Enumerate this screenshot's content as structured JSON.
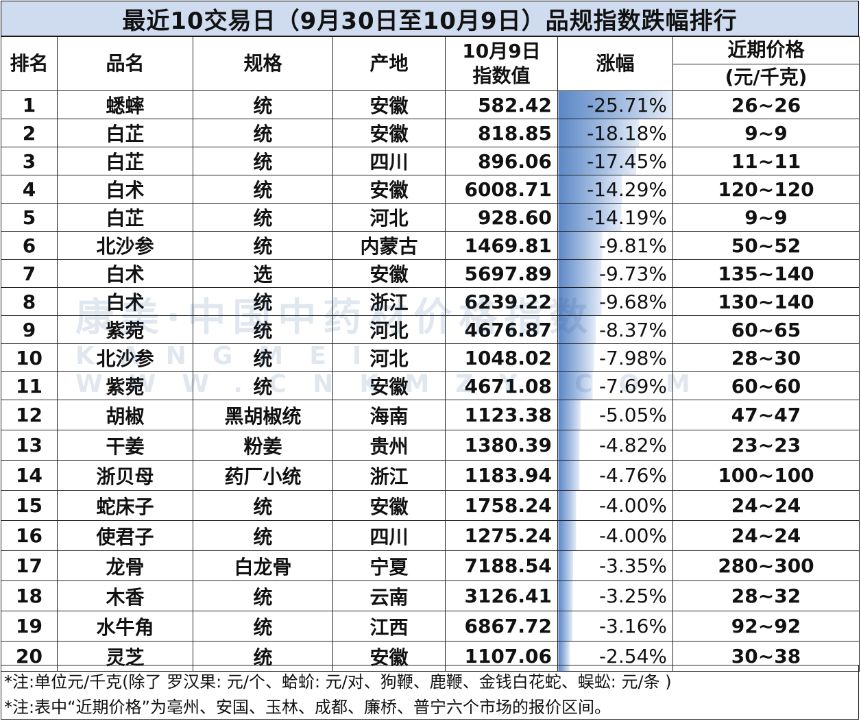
{
  "title": "最近10交易日（9月30日至10月9日）品规指数跌幅排行",
  "columns": [
    "排名",
    "品名",
    "规格",
    "产地",
    [
      "10月9日",
      "指数值"
    ],
    "涨幅",
    [
      "近期价格",
      "(元/千克)"
    ]
  ],
  "colors": {
    "title_bg": "#cfdcef",
    "bar_dark": "#5b87c5",
    "bar_light": "#ffffff",
    "border": "#222222"
  },
  "change_scale_max_abs": 25.71,
  "rows": [
    {
      "rank": "1",
      "name": "蟋蟀",
      "spec": "统",
      "origin": "安徽",
      "index": "582.42",
      "change": "-25.71%",
      "change_value": -25.71,
      "price": "26~26"
    },
    {
      "rank": "2",
      "name": "白芷",
      "spec": "统",
      "origin": "安徽",
      "index": "818.85",
      "change": "-18.18%",
      "change_value": -18.18,
      "price": "9~9"
    },
    {
      "rank": "3",
      "name": "白芷",
      "spec": "统",
      "origin": "四川",
      "index": "896.06",
      "change": "-17.45%",
      "change_value": -17.45,
      "price": "11~11"
    },
    {
      "rank": "4",
      "name": "白术",
      "spec": "统",
      "origin": "安徽",
      "index": "6008.71",
      "change": "-14.29%",
      "change_value": -14.29,
      "price": "120~120"
    },
    {
      "rank": "5",
      "name": "白芷",
      "spec": "统",
      "origin": "河北",
      "index": "928.60",
      "change": "-14.19%",
      "change_value": -14.19,
      "price": "9~9"
    },
    {
      "rank": "6",
      "name": "北沙参",
      "spec": "统",
      "origin": "内蒙古",
      "index": "1469.81",
      "change": "-9.81%",
      "change_value": -9.81,
      "price": "50~52"
    },
    {
      "rank": "7",
      "name": "白术",
      "spec": "选",
      "origin": "安徽",
      "index": "5697.89",
      "change": "-9.73%",
      "change_value": -9.73,
      "price": "135~140"
    },
    {
      "rank": "8",
      "name": "白术",
      "spec": "统",
      "origin": "浙江",
      "index": "6239.22",
      "change": "-9.68%",
      "change_value": -9.68,
      "price": "130~140"
    },
    {
      "rank": "9",
      "name": "紫菀",
      "spec": "统",
      "origin": "河北",
      "index": "4676.87",
      "change": "-8.37%",
      "change_value": -8.37,
      "price": "60~65"
    },
    {
      "rank": "10",
      "name": "北沙参",
      "spec": "统",
      "origin": "河北",
      "index": "1048.02",
      "change": "-7.98%",
      "change_value": -7.98,
      "price": "28~30"
    },
    {
      "rank": "11",
      "name": "紫菀",
      "spec": "统",
      "origin": "安徽",
      "index": "4671.08",
      "change": "-7.69%",
      "change_value": -7.69,
      "price": "60~60"
    },
    {
      "rank": "12",
      "name": "胡椒",
      "spec": "黑胡椒统",
      "origin": "海南",
      "index": "1123.38",
      "change": "-5.05%",
      "change_value": -5.05,
      "price": "47~47"
    },
    {
      "rank": "13",
      "name": "干姜",
      "spec": "粉姜",
      "origin": "贵州",
      "index": "1380.39",
      "change": "-4.82%",
      "change_value": -4.82,
      "price": "23~23"
    },
    {
      "rank": "14",
      "name": "浙贝母",
      "spec": "药厂小统",
      "origin": "浙江",
      "index": "1183.94",
      "change": "-4.76%",
      "change_value": -4.76,
      "price": "100~100"
    },
    {
      "rank": "15",
      "name": "蛇床子",
      "spec": "统",
      "origin": "安徽",
      "index": "1758.24",
      "change": "-4.00%",
      "change_value": -4.0,
      "price": "24~24"
    },
    {
      "rank": "16",
      "name": "使君子",
      "spec": "统",
      "origin": "四川",
      "index": "1275.24",
      "change": "-4.00%",
      "change_value": -4.0,
      "price": "24~24"
    },
    {
      "rank": "17",
      "name": "龙骨",
      "spec": "白龙骨",
      "origin": "宁夏",
      "index": "7188.54",
      "change": "-3.35%",
      "change_value": -3.35,
      "price": "280~300"
    },
    {
      "rank": "18",
      "name": "木香",
      "spec": "统",
      "origin": "云南",
      "index": "3126.41",
      "change": "-3.25%",
      "change_value": -3.25,
      "price": "28~32"
    },
    {
      "rank": "19",
      "name": "水牛角",
      "spec": "统",
      "origin": "江西",
      "index": "6867.72",
      "change": "-3.16%",
      "change_value": -3.16,
      "price": "92~92"
    },
    {
      "rank": "20",
      "name": "灵芝",
      "spec": "统",
      "origin": "安徽",
      "index": "1107.06",
      "change": "-2.54%",
      "change_value": -2.54,
      "price": "30~38"
    }
  ],
  "notes": [
    "*注:单位元/千克(除了 罗汉果: 元/个、蛤蚧: 元/对、狗鞭、鹿鞭、金钱白花蛇、蜈蚣: 元/条 )",
    "*注:表中“近期价格”为亳州、安国、玉林、成都、廉桥、普宁六个市场的报价区间。"
  ]
}
